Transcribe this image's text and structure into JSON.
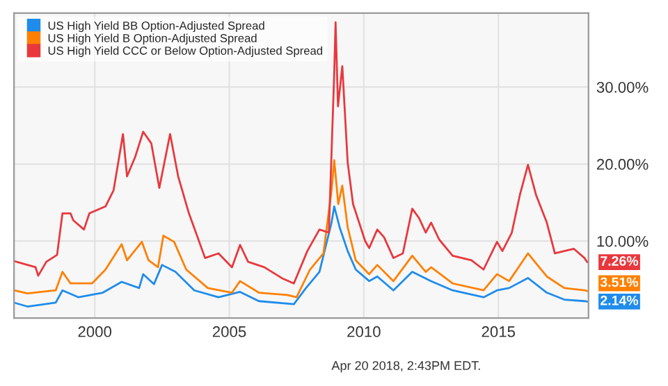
{
  "chart_data": {
    "type": "line",
    "xlim": [
      1997.0,
      2018.35
    ],
    "xticks": [
      2000,
      2005,
      2010,
      2015
    ],
    "ylim": [
      0,
      39.6
    ],
    "yticks": [
      {
        "value": 10,
        "label": "10.00%"
      },
      {
        "value": 20,
        "label": "20.00%"
      },
      {
        "value": 30,
        "label": "30.00%"
      }
    ],
    "grid": true,
    "legend": "top left",
    "marker": "none",
    "line_style": "solid",
    "series": [
      {
        "name": "US High Yield BB Option-Adjusted Spread",
        "color": "#1f8ceb",
        "x": [
          1997.0,
          1997.5,
          1998.55,
          1998.8,
          1999.4,
          2000.3,
          2001.0,
          2001.65,
          2001.8,
          2002.2,
          2002.5,
          2003.0,
          2003.7,
          2004.6,
          2005.4,
          2006.1,
          2007.4,
          2007.85,
          2008.35,
          2008.8,
          2008.9,
          2009.1,
          2009.4,
          2009.7,
          2010.2,
          2010.5,
          2011.1,
          2011.8,
          2012.5,
          2013.3,
          2014.45,
          2014.95,
          2015.4,
          2016.1,
          2016.8,
          2017.45,
          2018.2,
          2018.3
        ],
        "values": [
          2.0,
          1.5,
          2.0,
          3.6,
          2.7,
          3.3,
          4.7,
          3.9,
          5.7,
          4.4,
          6.9,
          6.0,
          3.6,
          2.7,
          3.4,
          2.2,
          1.8,
          3.9,
          6.0,
          12.4,
          14.5,
          11.8,
          8.7,
          6.3,
          4.8,
          5.4,
          3.6,
          6.0,
          4.8,
          3.6,
          2.7,
          3.6,
          3.9,
          5.2,
          3.3,
          2.4,
          2.2,
          2.14
        ],
        "value_labels": [
          null,
          null,
          null,
          null,
          null,
          null,
          null,
          null,
          null,
          null,
          null,
          null,
          null,
          null,
          null,
          null,
          null,
          null,
          null,
          null,
          null,
          null,
          null,
          null,
          null,
          null,
          null,
          null,
          null,
          null,
          null,
          null,
          null,
          null,
          null,
          null,
          null,
          "2.14%"
        ]
      },
      {
        "name": "US High Yield B Option-Adjusted Spread",
        "color": "#ff8000",
        "x": [
          1997.0,
          1997.5,
          1998.55,
          1998.8,
          1999.1,
          1999.9,
          2000.4,
          2001.0,
          2001.2,
          2001.75,
          2002.0,
          2002.35,
          2002.55,
          2002.95,
          2003.4,
          2004.2,
          2005.1,
          2005.4,
          2006.1,
          2007.15,
          2007.5,
          2008.0,
          2008.5,
          2008.8,
          2008.9,
          2009.05,
          2009.2,
          2009.4,
          2009.7,
          2010.2,
          2010.5,
          2011.1,
          2011.8,
          2012.3,
          2012.5,
          2013.3,
          2014.45,
          2014.95,
          2015.4,
          2016.1,
          2016.8,
          2017.45,
          2018.2,
          2018.3
        ],
        "values": [
          3.6,
          3.2,
          3.6,
          6.0,
          4.5,
          4.5,
          6.3,
          9.6,
          7.5,
          9.9,
          7.5,
          6.6,
          10.7,
          9.9,
          6.3,
          3.9,
          3.3,
          4.8,
          3.3,
          3.0,
          2.7,
          6.3,
          8.4,
          16.6,
          20.5,
          14.8,
          17.2,
          11.8,
          7.5,
          5.7,
          6.9,
          4.8,
          8.1,
          6.0,
          6.6,
          4.5,
          3.6,
          5.7,
          4.8,
          8.4,
          5.4,
          3.9,
          3.6,
          3.51
        ],
        "value_labels": [
          null,
          null,
          null,
          null,
          null,
          null,
          null,
          null,
          null,
          null,
          null,
          null,
          null,
          null,
          null,
          null,
          null,
          null,
          null,
          null,
          null,
          null,
          null,
          null,
          null,
          null,
          null,
          null,
          null,
          null,
          null,
          null,
          null,
          null,
          null,
          null,
          null,
          null,
          null,
          null,
          null,
          null,
          null,
          "3.51%"
        ]
      },
      {
        "name": "US High Yield CCC or Below Option-Adjusted Spread",
        "color": "#e8383d",
        "x": [
          1997.0,
          1997.8,
          1997.9,
          1998.2,
          1998.6,
          1998.8,
          1999.1,
          1999.2,
          1999.6,
          1999.8,
          2000.4,
          2000.7,
          2001.05,
          2001.2,
          2001.5,
          2001.8,
          2002.1,
          2002.4,
          2002.8,
          2003.1,
          2003.5,
          2004.1,
          2004.6,
          2005.1,
          2005.4,
          2005.7,
          2006.3,
          2007.0,
          2007.4,
          2007.9,
          2008.35,
          2008.7,
          2008.9,
          2008.95,
          2009.04,
          2009.2,
          2009.4,
          2009.6,
          2010.05,
          2010.2,
          2010.5,
          2010.75,
          2011.1,
          2011.45,
          2011.8,
          2012.05,
          2012.3,
          2012.5,
          2012.8,
          2013.3,
          2014.0,
          2014.45,
          2014.95,
          2015.15,
          2015.5,
          2015.8,
          2016.1,
          2016.4,
          2016.8,
          2017.1,
          2017.45,
          2017.8,
          2018.2,
          2018.3
        ],
        "values": [
          7.4,
          6.6,
          5.5,
          7.3,
          8.2,
          13.6,
          13.6,
          12.7,
          11.5,
          13.6,
          14.5,
          16.6,
          23.9,
          18.4,
          20.9,
          24.2,
          22.7,
          16.9,
          23.9,
          18.4,
          13.6,
          7.8,
          8.4,
          6.6,
          9.5,
          7.3,
          6.6,
          5.1,
          4.5,
          8.7,
          11.5,
          11.1,
          31.8,
          38.4,
          27.5,
          32.7,
          20.2,
          14.8,
          10.0,
          9.1,
          11.5,
          10.5,
          7.8,
          8.4,
          14.2,
          13.0,
          11.1,
          12.4,
          10.2,
          8.1,
          7.5,
          6.3,
          9.9,
          8.7,
          11.1,
          16.0,
          19.9,
          16.0,
          12.4,
          8.4,
          8.7,
          9.0,
          7.8,
          7.26
        ],
        "value_labels": [
          null,
          null,
          null,
          null,
          null,
          null,
          null,
          null,
          null,
          null,
          null,
          null,
          null,
          null,
          null,
          null,
          null,
          null,
          null,
          null,
          null,
          null,
          null,
          null,
          null,
          null,
          null,
          null,
          null,
          null,
          null,
          null,
          null,
          null,
          null,
          null,
          null,
          null,
          null,
          null,
          null,
          null,
          null,
          null,
          null,
          null,
          null,
          null,
          null,
          null,
          null,
          null,
          null,
          null,
          null,
          null,
          null,
          null,
          null,
          null,
          null,
          null,
          null,
          "7.26%"
        ]
      }
    ],
    "annotations": [
      "Apr 20 2018, 2:43PM EDT."
    ]
  }
}
